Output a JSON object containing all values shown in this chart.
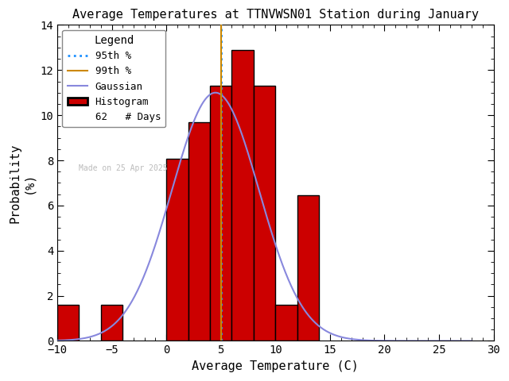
{
  "title": "Average Temperatures at TTNVWSN01 Station during January",
  "xlabel": "Average Temperature (C)",
  "ylabel": "Probability\n(%)",
  "xlim": [
    -10,
    30
  ],
  "ylim": [
    0,
    14
  ],
  "yticks": [
    0,
    2,
    4,
    6,
    8,
    10,
    12,
    14
  ],
  "xticks": [
    -10,
    -5,
    0,
    5,
    10,
    15,
    20,
    25,
    30
  ],
  "n_days": 62,
  "made_on": "Made on 25 Apr 2025",
  "hist_color": "#cc0000",
  "hist_edgecolor": "#000000",
  "gaussian_color": "#8888dd",
  "p95_color": "#1e90ff",
  "p99_color": "#cc8800",
  "bin_left_edges": [
    -10,
    -8,
    -6,
    -4,
    -2,
    0,
    2,
    4,
    6,
    8,
    10,
    12
  ],
  "bin_heights": [
    1.61,
    0.0,
    1.61,
    0.0,
    0.0,
    8.06,
    9.68,
    11.29,
    12.9,
    11.29,
    1.61,
    6.45
  ],
  "bin_width": 2,
  "gauss_mean": 4.5,
  "gauss_std": 4.0,
  "gauss_peak": 11.0,
  "p95_value": 5.0,
  "p99_value": 5.0,
  "legend_title": "Legend",
  "bg_color": "#ffffff"
}
